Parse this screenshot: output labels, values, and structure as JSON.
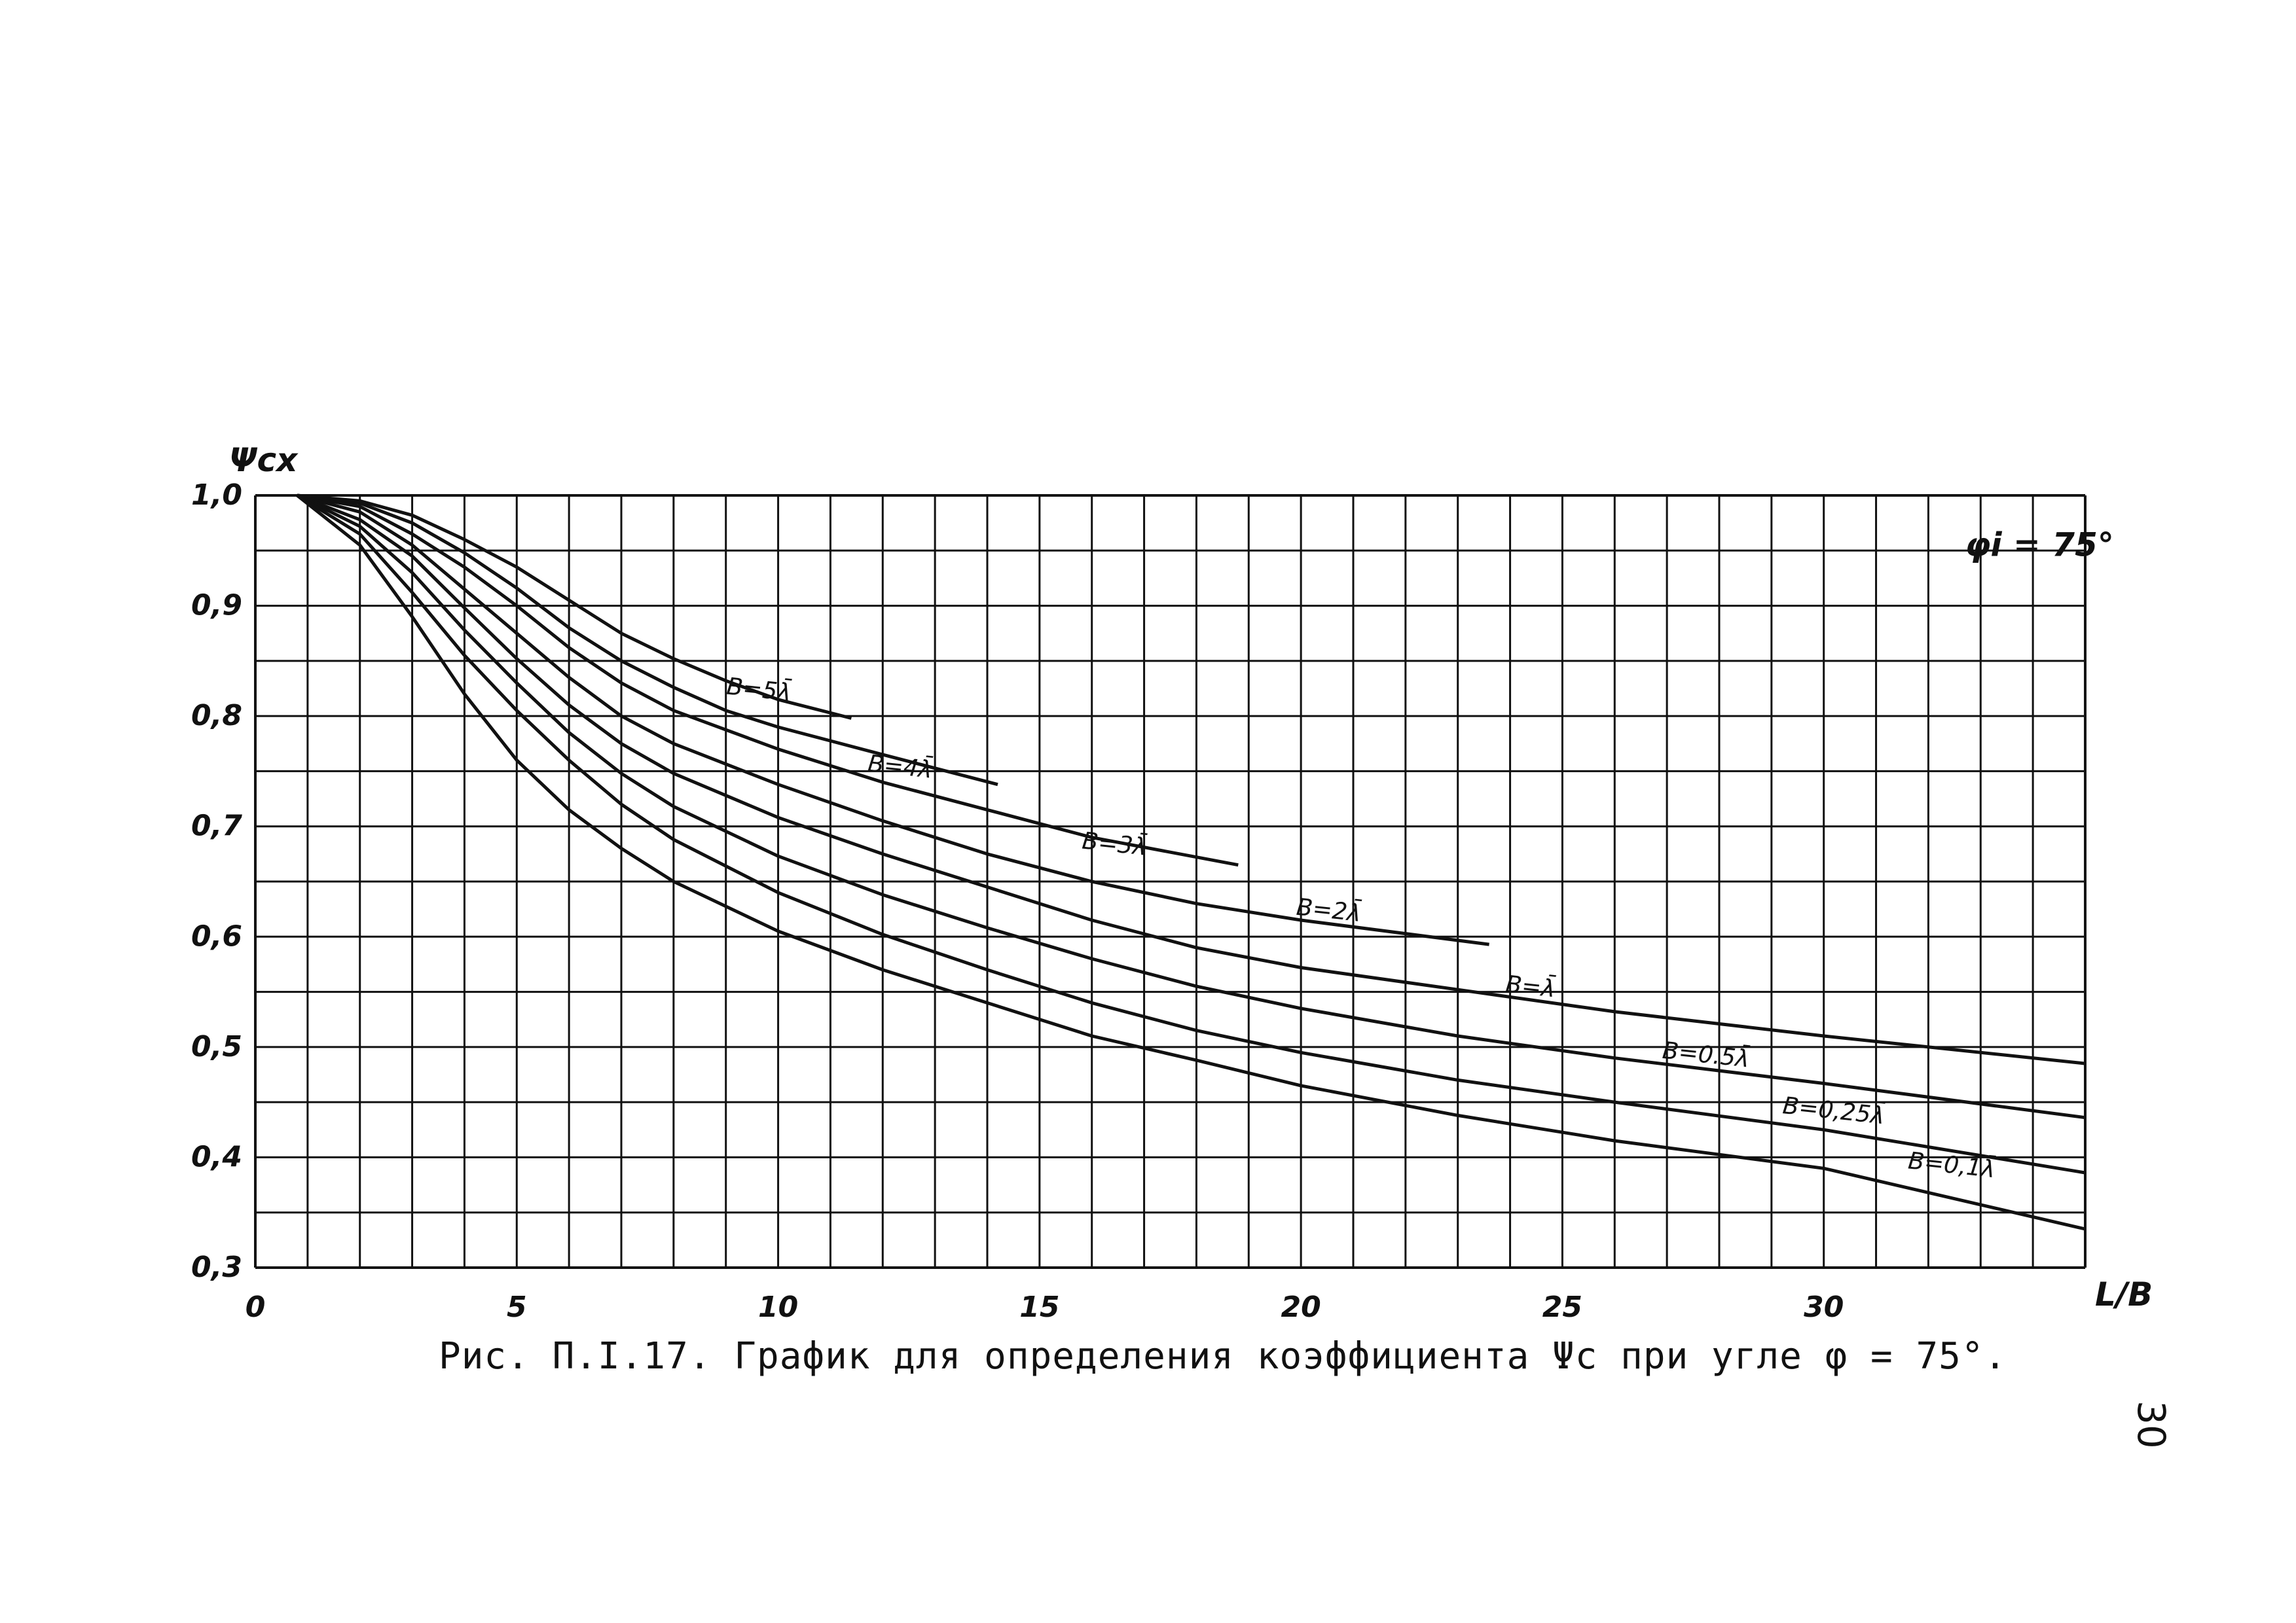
{
  "chart_data": {
    "type": "line",
    "title": "",
    "xlabel": "L/B",
    "ylabel": "Ψcx",
    "xlim": [
      0,
      35
    ],
    "ylim": [
      0.3,
      1.0
    ],
    "x_ticks": [
      "0",
      "5",
      "10",
      "15",
      "20",
      "25",
      "30"
    ],
    "y_ticks": [
      "0,3",
      "0,4",
      "0,5",
      "0,6",
      "0,7",
      "0,8",
      "0,9",
      "1,0"
    ],
    "grid": true,
    "annotation": "φi = 75°",
    "series": [
      {
        "name": "B=5λ̄",
        "x": [
          0.8,
          2,
          3,
          4,
          5,
          6,
          7,
          8,
          9,
          10,
          11.4
        ],
        "y": [
          1.0,
          0.995,
          0.982,
          0.96,
          0.935,
          0.905,
          0.875,
          0.852,
          0.832,
          0.815,
          0.798
        ]
      },
      {
        "name": "B=4λ̄",
        "x": [
          0.8,
          2,
          3,
          4,
          5,
          6,
          7,
          8,
          9,
          10,
          12,
          14.2
        ],
        "y": [
          1.0,
          0.993,
          0.975,
          0.948,
          0.916,
          0.88,
          0.85,
          0.826,
          0.805,
          0.79,
          0.765,
          0.738
        ]
      },
      {
        "name": "B=3λ̄",
        "x": [
          0.8,
          2,
          3,
          4,
          5,
          6,
          7,
          8,
          10,
          12,
          14,
          16,
          18.8
        ],
        "y": [
          1.0,
          0.99,
          0.965,
          0.935,
          0.9,
          0.862,
          0.83,
          0.805,
          0.77,
          0.74,
          0.715,
          0.69,
          0.665
        ]
      },
      {
        "name": "B=2λ̄",
        "x": [
          0.8,
          2,
          3,
          4,
          5,
          6,
          7,
          8,
          10,
          12,
          14,
          16,
          18,
          20,
          23.6
        ],
        "y": [
          1.0,
          0.985,
          0.955,
          0.915,
          0.875,
          0.835,
          0.8,
          0.775,
          0.738,
          0.705,
          0.675,
          0.65,
          0.63,
          0.615,
          0.593
        ]
      },
      {
        "name": "B=λ̄",
        "x": [
          0.8,
          2,
          3,
          4,
          5,
          6,
          7,
          8,
          10,
          12,
          14,
          16,
          18,
          20,
          23,
          26,
          30,
          35
        ],
        "y": [
          1.0,
          0.978,
          0.945,
          0.898,
          0.852,
          0.81,
          0.775,
          0.748,
          0.708,
          0.675,
          0.645,
          0.615,
          0.59,
          0.572,
          0.552,
          0.532,
          0.51,
          0.485
        ]
      },
      {
        "name": "B=0.5λ̄",
        "x": [
          0.8,
          2,
          3,
          4,
          5,
          6,
          7,
          8,
          10,
          12,
          14,
          16,
          18,
          20,
          23,
          26,
          30,
          35
        ],
        "y": [
          1.0,
          0.972,
          0.93,
          0.878,
          0.83,
          0.785,
          0.748,
          0.718,
          0.673,
          0.638,
          0.608,
          0.58,
          0.555,
          0.535,
          0.51,
          0.49,
          0.467,
          0.436
        ]
      },
      {
        "name": "B=0,25λ̄",
        "x": [
          0.8,
          2,
          3,
          4,
          5,
          6,
          7,
          8,
          10,
          12,
          14,
          16,
          18,
          20,
          23,
          26,
          30,
          35
        ],
        "y": [
          1.0,
          0.965,
          0.912,
          0.855,
          0.805,
          0.76,
          0.72,
          0.688,
          0.64,
          0.602,
          0.57,
          0.54,
          0.515,
          0.495,
          0.47,
          0.45,
          0.425,
          0.386
        ]
      },
      {
        "name": "B=0,1λ̄",
        "x": [
          0.8,
          2,
          3,
          4,
          5,
          6,
          7,
          8,
          10,
          12,
          14,
          16,
          18,
          20,
          23,
          26,
          30,
          35
        ],
        "y": [
          1.0,
          0.955,
          0.89,
          0.82,
          0.76,
          0.715,
          0.68,
          0.65,
          0.605,
          0.57,
          0.54,
          0.51,
          0.488,
          0.465,
          0.438,
          0.415,
          0.39,
          0.335
        ]
      }
    ]
  },
  "caption": "Рис. П.I.17. График для определения коэффициента Ψc при угле φ = 75°.",
  "page_number": "30"
}
